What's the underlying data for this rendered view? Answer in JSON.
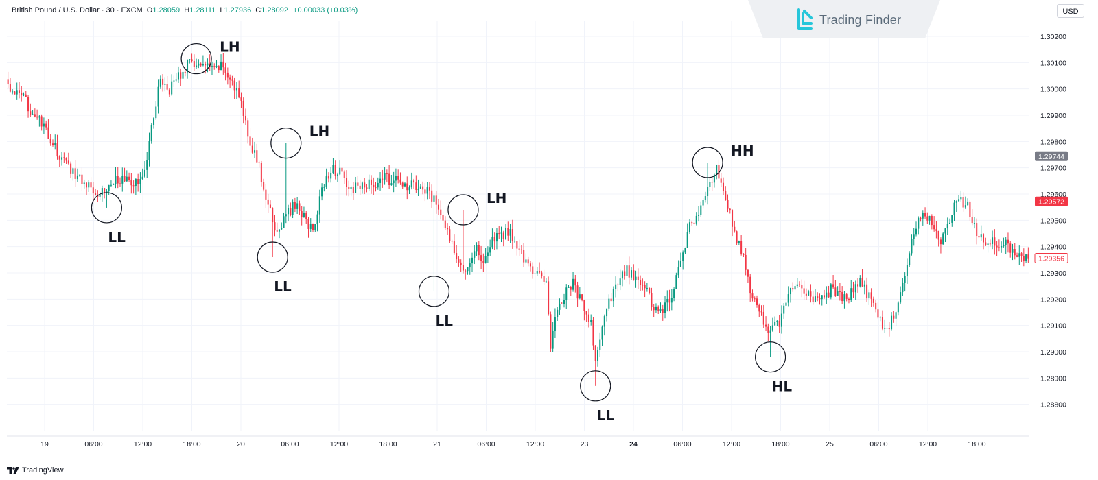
{
  "header": {
    "instrument": "British Pound / U.S. Dollar · 30 · FXCM",
    "ohlc": [
      {
        "key": "O",
        "value": "1.28059"
      },
      {
        "key": "H",
        "value": "1.28111"
      },
      {
        "key": "L",
        "value": "1.27936"
      },
      {
        "key": "C",
        "value": "1.28092"
      }
    ],
    "change": "+0.00033 (+0.03%)"
  },
  "brand": {
    "name": "Trading Finder"
  },
  "currency": "USD",
  "footer": {
    "platform": "TradingView"
  },
  "colors": {
    "up": "#089981",
    "down": "#f23645",
    "grid": "#f0f3fa",
    "axis_text": "#131722"
  },
  "chart_data": {
    "type": "candlestick",
    "ylim": [
      1.287,
      1.3026
    ],
    "y_ticks": [
      1.302,
      1.301,
      1.3,
      1.299,
      1.298,
      1.297,
      1.296,
      1.295,
      1.294,
      1.293,
      1.292,
      1.291,
      1.29,
      1.289,
      1.288
    ],
    "y_tick_labels": [
      "1.30200",
      "1.30100",
      "1.30000",
      "1.29900",
      "1.29800",
      "1.29700",
      "1.29600",
      "1.29500",
      "1.29400",
      "1.29300",
      "1.29200",
      "1.29100",
      "1.29000",
      "1.28900",
      "1.28800"
    ],
    "x_ticks": [
      {
        "label": "19",
        "bold": false
      },
      {
        "label": "06:00",
        "bold": false
      },
      {
        "label": "12:00",
        "bold": false
      },
      {
        "label": "18:00",
        "bold": false
      },
      {
        "label": "20",
        "bold": false
      },
      {
        "label": "06:00",
        "bold": false
      },
      {
        "label": "12:00",
        "bold": false
      },
      {
        "label": "18:00",
        "bold": false
      },
      {
        "label": "21",
        "bold": false
      },
      {
        "label": "06:00",
        "bold": false
      },
      {
        "label": "12:00",
        "bold": false
      },
      {
        "label": "23",
        "bold": false
      },
      {
        "label": "24",
        "bold": true
      },
      {
        "label": "06:00",
        "bold": false
      },
      {
        "label": "12:00",
        "bold": false
      },
      {
        "label": "18:00",
        "bold": false
      },
      {
        "label": "25",
        "bold": false
      },
      {
        "label": "06:00",
        "bold": false
      },
      {
        "label": "12:00",
        "bold": false
      },
      {
        "label": "18:00",
        "bold": false
      }
    ],
    "price_labels": [
      {
        "value": 1.29744,
        "text": "1.29744",
        "style": "gray"
      },
      {
        "value": 1.29572,
        "text": "1.29572",
        "style": "red"
      },
      {
        "value": 1.29356,
        "text": "1.29356",
        "style": "outline"
      }
    ],
    "anchors": [
      [
        0,
        1.3001
      ],
      [
        8,
        1.2995
      ],
      [
        16,
        1.2985
      ],
      [
        24,
        1.2973
      ],
      [
        32,
        1.2966
      ],
      [
        40,
        1.2961
      ],
      [
        44,
        1.2962
      ],
      [
        48,
        1.2966
      ],
      [
        56,
        1.2964
      ],
      [
        60,
        1.2965
      ],
      [
        64,
        1.2985
      ],
      [
        68,
        1.3004
      ],
      [
        72,
        1.3
      ],
      [
        76,
        1.3005
      ],
      [
        80,
        1.3009
      ],
      [
        84,
        1.301
      ],
      [
        88,
        1.3008
      ],
      [
        92,
        1.3007
      ],
      [
        96,
        1.3009
      ],
      [
        100,
        1.3002
      ],
      [
        104,
        1.2995
      ],
      [
        108,
        1.298
      ],
      [
        112,
        1.297
      ],
      [
        116,
        1.2955
      ],
      [
        120,
        1.2945
      ],
      [
        124,
        1.2952
      ],
      [
        128,
        1.2956
      ],
      [
        132,
        1.2952
      ],
      [
        136,
        1.2945
      ],
      [
        140,
        1.2962
      ],
      [
        144,
        1.297
      ],
      [
        148,
        1.2968
      ],
      [
        152,
        1.2962
      ],
      [
        160,
        1.2963
      ],
      [
        168,
        1.2966
      ],
      [
        176,
        1.2964
      ],
      [
        184,
        1.2962
      ],
      [
        188,
        1.296
      ],
      [
        192,
        1.2955
      ],
      [
        196,
        1.2945
      ],
      [
        200,
        1.2937
      ],
      [
        204,
        1.2931
      ],
      [
        208,
        1.294
      ],
      [
        212,
        1.2935
      ],
      [
        216,
        1.2942
      ],
      [
        220,
        1.2944
      ],
      [
        224,
        1.2946
      ],
      [
        228,
        1.2938
      ],
      [
        232,
        1.2933
      ],
      [
        236,
        1.293
      ],
      [
        240,
        1.2925
      ],
      [
        242,
        1.2902
      ],
      [
        244,
        1.2915
      ],
      [
        248,
        1.2922
      ],
      [
        252,
        1.2926
      ],
      [
        256,
        1.2918
      ],
      [
        260,
        1.291
      ],
      [
        262,
        1.2895
      ],
      [
        264,
        1.2906
      ],
      [
        268,
        1.2918
      ],
      [
        272,
        1.2926
      ],
      [
        276,
        1.2931
      ],
      [
        280,
        1.2927
      ],
      [
        284,
        1.2925
      ],
      [
        288,
        1.2917
      ],
      [
        292,
        1.2915
      ],
      [
        296,
        1.2922
      ],
      [
        300,
        1.2935
      ],
      [
        304,
        1.2948
      ],
      [
        308,
        1.2952
      ],
      [
        312,
        1.2962
      ],
      [
        316,
        1.2969
      ],
      [
        320,
        1.296
      ],
      [
        324,
        1.2945
      ],
      [
        328,
        1.2935
      ],
      [
        332,
        1.292
      ],
      [
        336,
        1.2913
      ],
      [
        340,
        1.2908
      ],
      [
        344,
        1.2911
      ],
      [
        348,
        1.2922
      ],
      [
        352,
        1.2925
      ],
      [
        356,
        1.2922
      ],
      [
        360,
        1.292
      ],
      [
        364,
        1.2922
      ],
      [
        368,
        1.2924
      ],
      [
        372,
        1.292
      ],
      [
        376,
        1.2922
      ],
      [
        380,
        1.2926
      ],
      [
        384,
        1.2921
      ],
      [
        388,
        1.2913
      ],
      [
        392,
        1.2908
      ],
      [
        396,
        1.2915
      ],
      [
        400,
        1.293
      ],
      [
        404,
        1.2945
      ],
      [
        408,
        1.2953
      ],
      [
        412,
        1.295
      ],
      [
        416,
        1.2941
      ],
      [
        420,
        1.295
      ],
      [
        424,
        1.2959
      ],
      [
        428,
        1.2955
      ],
      [
        432,
        1.2946
      ],
      [
        436,
        1.2942
      ],
      [
        440,
        1.2942
      ],
      [
        444,
        1.2941
      ],
      [
        448,
        1.2939
      ],
      [
        452,
        1.2937
      ],
      [
        455,
        1.2935
      ]
    ],
    "annotations": [
      {
        "label": "LL",
        "x": 44,
        "y": 1.29548,
        "label_dy": 1
      },
      {
        "label": "LH",
        "x": 84,
        "y": 1.30115,
        "label_dy": -1
      },
      {
        "label": "LL",
        "x": 118,
        "y": 1.2936,
        "label_dy": 1
      },
      {
        "label": "LH",
        "x": 124,
        "y": 1.29794,
        "label_dy": -1
      },
      {
        "label": "LL",
        "x": 190,
        "y": 1.2923,
        "label_dy": 1
      },
      {
        "label": "LH",
        "x": 203,
        "y": 1.2954,
        "label_dy": -1
      },
      {
        "label": "LL",
        "x": 262,
        "y": 1.2887,
        "label_dy": 1
      },
      {
        "label": "HH",
        "x": 312,
        "y": 1.2972,
        "label_dy": -1
      },
      {
        "label": "HL",
        "x": 340,
        "y": 1.2898,
        "label_dy": 1
      }
    ]
  }
}
